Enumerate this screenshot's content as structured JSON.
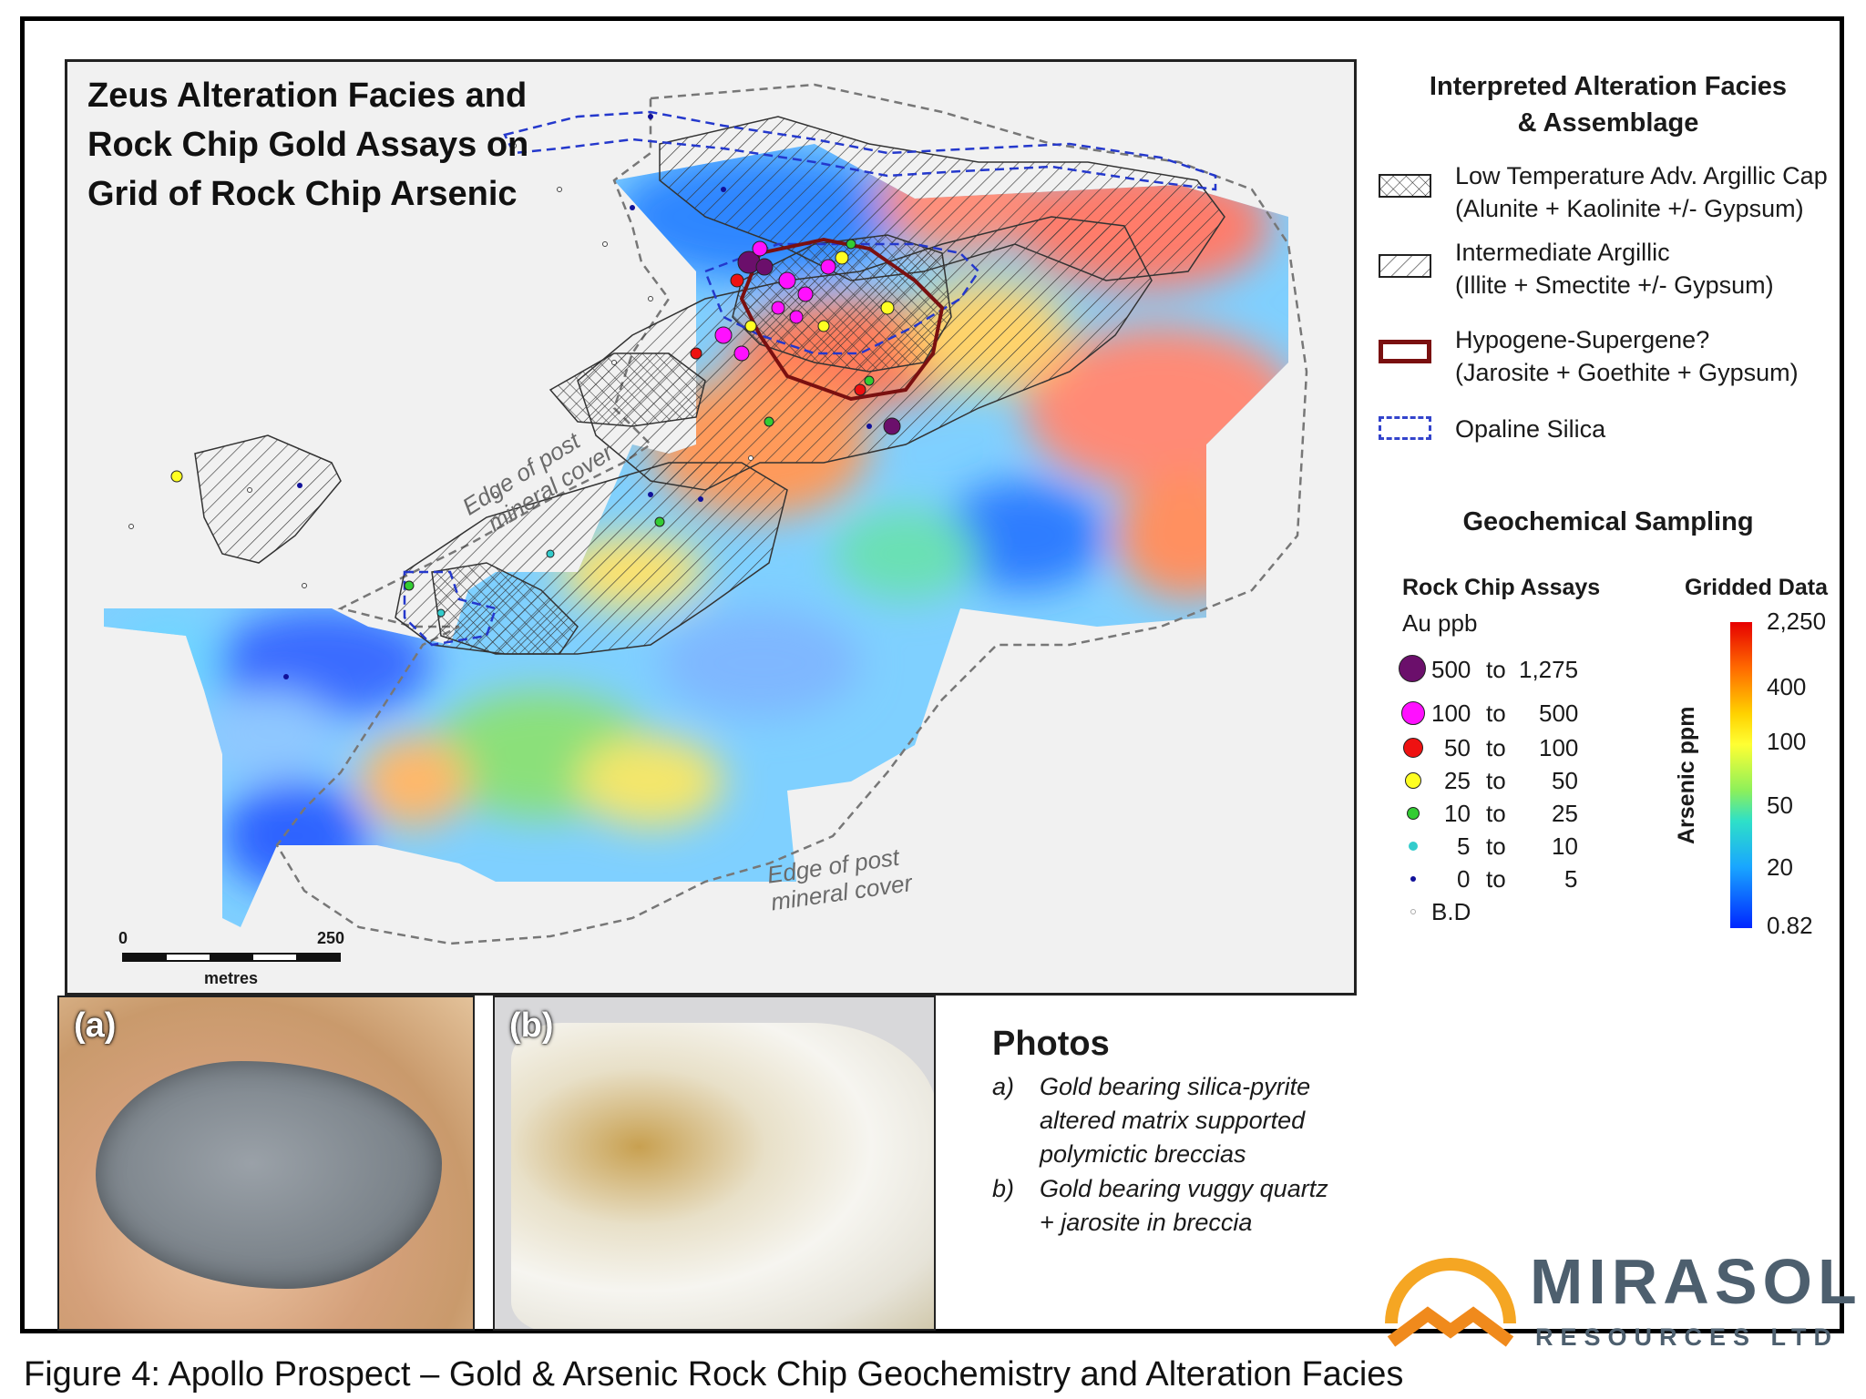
{
  "map": {
    "title_lines": [
      "Zeus Alteration Facies and",
      "Rock Chip Gold Assays on",
      "Grid of Rock Chip Arsenic"
    ],
    "cover_label_upper": [
      "Edge of post",
      "mineral cover"
    ],
    "cover_label_lower": [
      "Edge of post",
      "mineral cover"
    ],
    "scale": {
      "min": "0",
      "max": "250",
      "unit": "metres"
    }
  },
  "legend": {
    "facies_title": [
      "Interpreted Alteration Facies",
      "& Assemblage"
    ],
    "facies": [
      {
        "name": "Low Temperature Adv. Argillic Cap",
        "assemblage": "(Alunite + Kaolinite +/- Gypsum)",
        "symbol": "dense-crosshatch"
      },
      {
        "name": "Intermediate Argillic",
        "assemblage": "(Illite + Smectite +/- Gypsum)",
        "symbol": "diagonal-hatch"
      },
      {
        "name": "Hypogene-Supergene?",
        "assemblage": "(Jarosite + Goethite + Gypsum)",
        "symbol": "dark-red-outline",
        "color": "#7a1010"
      },
      {
        "name": "Opaline Silica",
        "assemblage": "",
        "symbol": "blue-dashed-outline",
        "color": "#3344cc"
      }
    ],
    "geochem_title": "Geochemical Sampling",
    "assays_title": "Rock Chip Assays",
    "assays_unit": "Au ppb",
    "assay_classes": [
      {
        "from": "500",
        "to_word": "to",
        "upto": "1,275",
        "color": "#6b0f6b"
      },
      {
        "from": "100",
        "to_word": "to",
        "upto": "500",
        "color": "#ff10ff"
      },
      {
        "from": "50",
        "to_word": "to",
        "upto": "100",
        "color": "#ee1111"
      },
      {
        "from": "25",
        "to_word": "to",
        "upto": "50",
        "color": "#ffff22"
      },
      {
        "from": "10",
        "to_word": "to",
        "upto": "25",
        "color": "#33cc33"
      },
      {
        "from": "5",
        "to_word": "to",
        "upto": "10",
        "color": "#33cccc"
      },
      {
        "from": "0",
        "to_word": "to",
        "upto": "5",
        "color": "#111199"
      },
      {
        "from": "B.D",
        "to_word": "",
        "upto": "",
        "color": "#ffffff"
      }
    ],
    "gridded_title": "Gridded Data",
    "gridded_label": "Arsenic ppm",
    "gridded_ticks": [
      "2,250",
      "400",
      "100",
      "50",
      "20",
      "0.82"
    ]
  },
  "photos": {
    "title": "Photos",
    "panels": [
      {
        "tag": "(a)",
        "key": "a)",
        "caption_lines": [
          "Gold bearing silica-pyrite",
          "altered matrix supported",
          "polymictic breccias"
        ]
      },
      {
        "tag": "(b)",
        "key": "b)",
        "caption_lines": [
          "Gold bearing vuggy quartz",
          "+ jarosite in breccia"
        ]
      }
    ]
  },
  "logo": {
    "name": "MIRASOL",
    "sub": "RESOURCES LTD"
  },
  "caption": "Figure 4: Apollo Prospect – Gold & Arsenic Rock Chip Geochemistry and Alteration Facies"
}
